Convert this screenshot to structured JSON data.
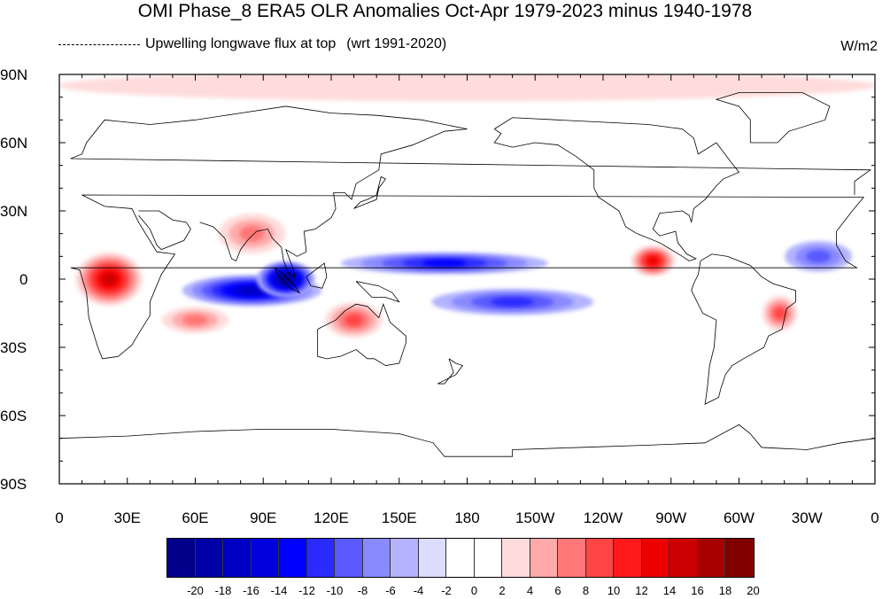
{
  "title": "OMI Phase_8 ERA5 OLR Anomalies Oct-Apr 1979-2023 minus 1940-1978",
  "subtitle": {
    "variable": "Upwelling longwave flux at top",
    "reference": "(wrt 1991-2020)"
  },
  "units": "W/m2",
  "axes": {
    "lat_labels": [
      "90N",
      "60N",
      "30N",
      "0",
      "30S",
      "60S",
      "90S"
    ],
    "lon_labels": [
      "0",
      "30E",
      "60E",
      "90E",
      "120E",
      "150E",
      "180",
      "150W",
      "120W",
      "90W",
      "60W",
      "30W",
      "0"
    ]
  },
  "colorbar": {
    "labels": [
      "-20",
      "-18",
      "-16",
      "-14",
      "-12",
      "-10",
      "-8",
      "-6",
      "-4",
      "-2",
      "0",
      "2",
      "4",
      "6",
      "8",
      "10",
      "12",
      "14",
      "16",
      "18",
      "20"
    ],
    "colors": [
      "#00008b",
      "#0000a6",
      "#0000c2",
      "#0000dd",
      "#0000ff",
      "#2b2bff",
      "#5a5aff",
      "#8a8aff",
      "#b3b3ff",
      "#dcdcff",
      "#ffffff",
      "#ffffff",
      "#ffdcdc",
      "#ffaaaa",
      "#ff7777",
      "#ff4444",
      "#ff1a1a",
      "#ee0000",
      "#cc0000",
      "#a80000",
      "#800000"
    ]
  },
  "map_data": {
    "type": "filled-contour-map",
    "projection": "cylindrical-equidistant",
    "lon_range": [
      0,
      360
    ],
    "lat_range": [
      -90,
      90
    ],
    "anomaly_features": [
      {
        "region": "Central Africa",
        "lon": 22,
        "lat": 0,
        "anomaly": 16
      },
      {
        "region": "Equatorial Indian Ocean",
        "lon": 85,
        "lat": -5,
        "anomaly": -16
      },
      {
        "region": "Maritime Continent",
        "lon": 100,
        "lat": 0,
        "anomaly": -20
      },
      {
        "region": "North Pacific ITCZ",
        "lon": 170,
        "lat": 7,
        "anomaly": -12
      },
      {
        "region": "South Pacific Convergence Zone",
        "lon": 200,
        "lat": -10,
        "anomaly": -10
      },
      {
        "region": "Eastern Pacific near Central America",
        "lon": 262,
        "lat": 8,
        "anomaly": 14
      },
      {
        "region": "Northern Australia",
        "lon": 130,
        "lat": -18,
        "anomaly": 10
      },
      {
        "region": "Southern Indian Ocean",
        "lon": 60,
        "lat": -18,
        "anomaly": 8
      },
      {
        "region": "India / Bay of Bengal",
        "lon": 85,
        "lat": 20,
        "anomaly": 8
      },
      {
        "region": "Eastern Brazil",
        "lon": 318,
        "lat": -15,
        "anomaly": 10
      },
      {
        "region": "Tropical Atlantic",
        "lon": 335,
        "lat": 10,
        "anomaly": -8
      },
      {
        "region": "Arctic",
        "lon": 180,
        "lat": 85,
        "anomaly": 4
      }
    ]
  }
}
